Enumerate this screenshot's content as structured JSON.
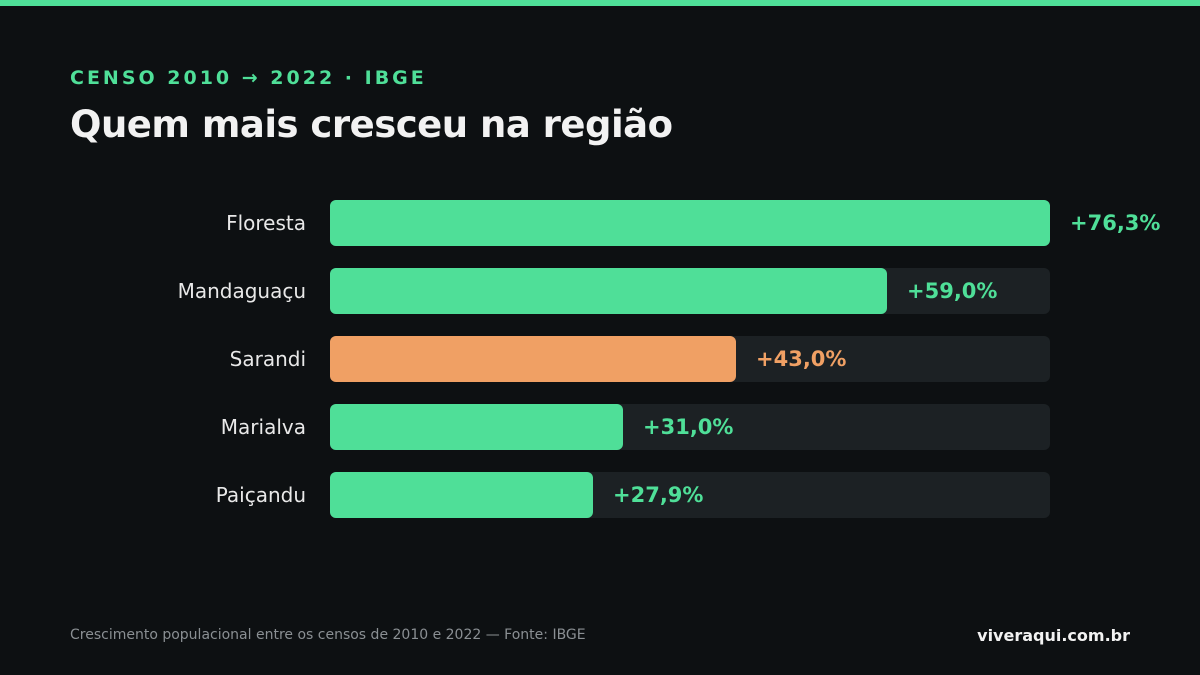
{
  "header": {
    "eyebrow": "CENSO 2010 → 2022 · IBGE",
    "title": "Quem mais cresceu na região"
  },
  "footer": {
    "note": "Crescimento populacional entre os censos de 2010 e 2022 — Fonte: IBGE",
    "brand": "viveraqui.com.br"
  },
  "colors": {
    "accent": "#4fdf98",
    "highlight": "#f0a064",
    "track": "#1c2124",
    "background": "#0d1012"
  },
  "chart_data": {
    "type": "bar",
    "orientation": "horizontal",
    "title": "Quem mais cresceu na região",
    "categories": [
      "Floresta",
      "Mandaguaçu",
      "Sarandi",
      "Marialva",
      "Paiçandu"
    ],
    "values": [
      76.3,
      59.0,
      43.0,
      31.0,
      27.9
    ],
    "value_labels": [
      "+76,3%",
      "+59,0%",
      "+43,0%",
      "+31,0%",
      "+27,9%"
    ],
    "highlight": "Sarandi",
    "xlim": [
      0,
      76.3
    ],
    "grid": false,
    "legend": "none"
  }
}
